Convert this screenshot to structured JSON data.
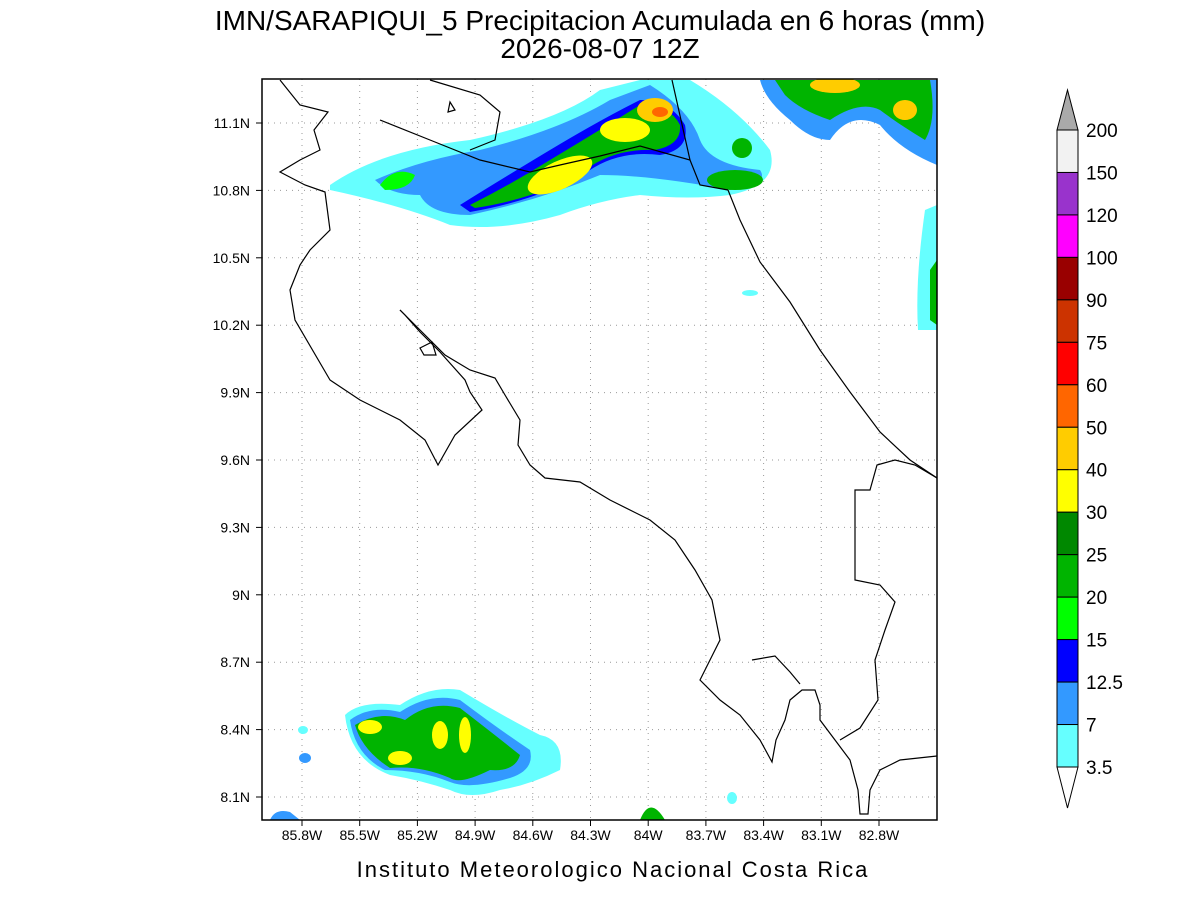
{
  "map": {
    "title": "IMN/SARAPIQUI_5 Precipitacion Acumulada en 6 horas (mm)",
    "subtitle": "2026-08-07 12Z",
    "lat_labels": [
      "11.1N",
      "10.8N",
      "10.5N",
      "10.2N",
      "9.9N",
      "9.6N",
      "9.3N",
      "9N",
      "8.7N",
      "8.4N",
      "8.1N"
    ],
    "lon_labels": [
      "85.8W",
      "85.5W",
      "85.2W",
      "84.9W",
      "84.6W",
      "84.3W",
      "84W",
      "83.7W",
      "83.4W",
      "83.1W",
      "82.8W"
    ],
    "legend": {
      "levels": [
        "200",
        "150",
        "120",
        "100",
        "90",
        "75",
        "60",
        "50",
        "40",
        "30",
        "25",
        "20",
        "15",
        "12.5",
        "7",
        "3.5"
      ],
      "colors": [
        "#f2f2f2",
        "#9933cc",
        "#ff00ff",
        "#990000",
        "#cc3300",
        "#ff0000",
        "#ff6600",
        "#ffcc00",
        "#ffff00",
        "#008800",
        "#00b400",
        "#00ff00",
        "#0000ff",
        "#3399ff",
        "#66ffff"
      ]
    },
    "credit": "Instituto Meteorologico Nacional Costa Rica"
  }
}
